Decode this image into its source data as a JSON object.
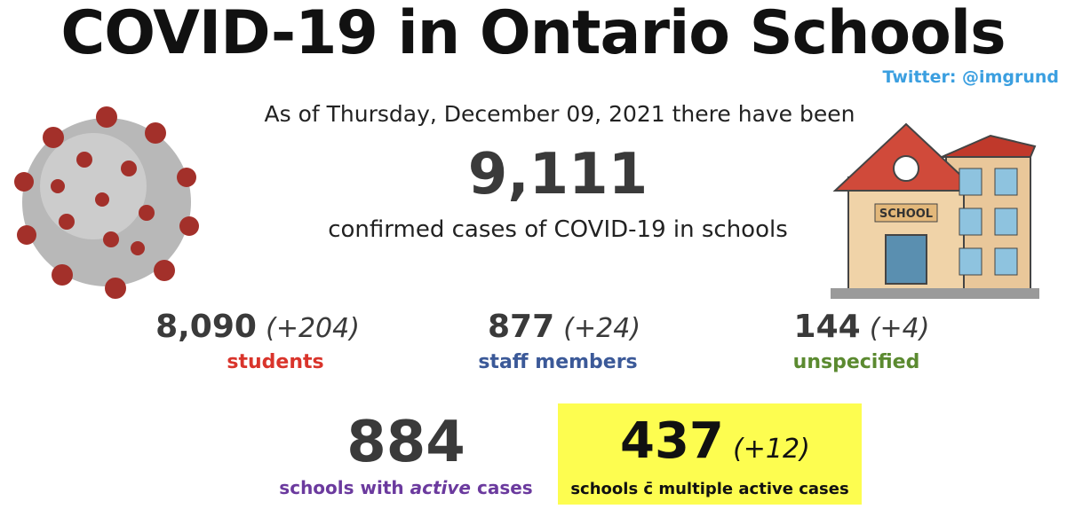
{
  "header": {
    "title": "COVID-19 in Ontario Schools",
    "credit": "Twitter: @imgrund"
  },
  "summary": {
    "intro": "As of Thursday, December 09, 2021 there have been",
    "total": "9,111",
    "total_label": "confirmed cases of COVID-19 in schools"
  },
  "breakdown": [
    {
      "value": "8,090",
      "change": "(+204)",
      "label": "students"
    },
    {
      "value": "877",
      "change": "(+24)",
      "label": "staff members"
    },
    {
      "value": "144",
      "change": "(+4)",
      "label": "unspecified"
    }
  ],
  "schools": {
    "active": {
      "value": "884",
      "label_before": "schools with",
      "label_emphasis": "active",
      "label_after": "cases"
    },
    "multiple": {
      "value": "437",
      "change": "(+12)",
      "label": "schools c̄ multiple active cases"
    }
  }
}
